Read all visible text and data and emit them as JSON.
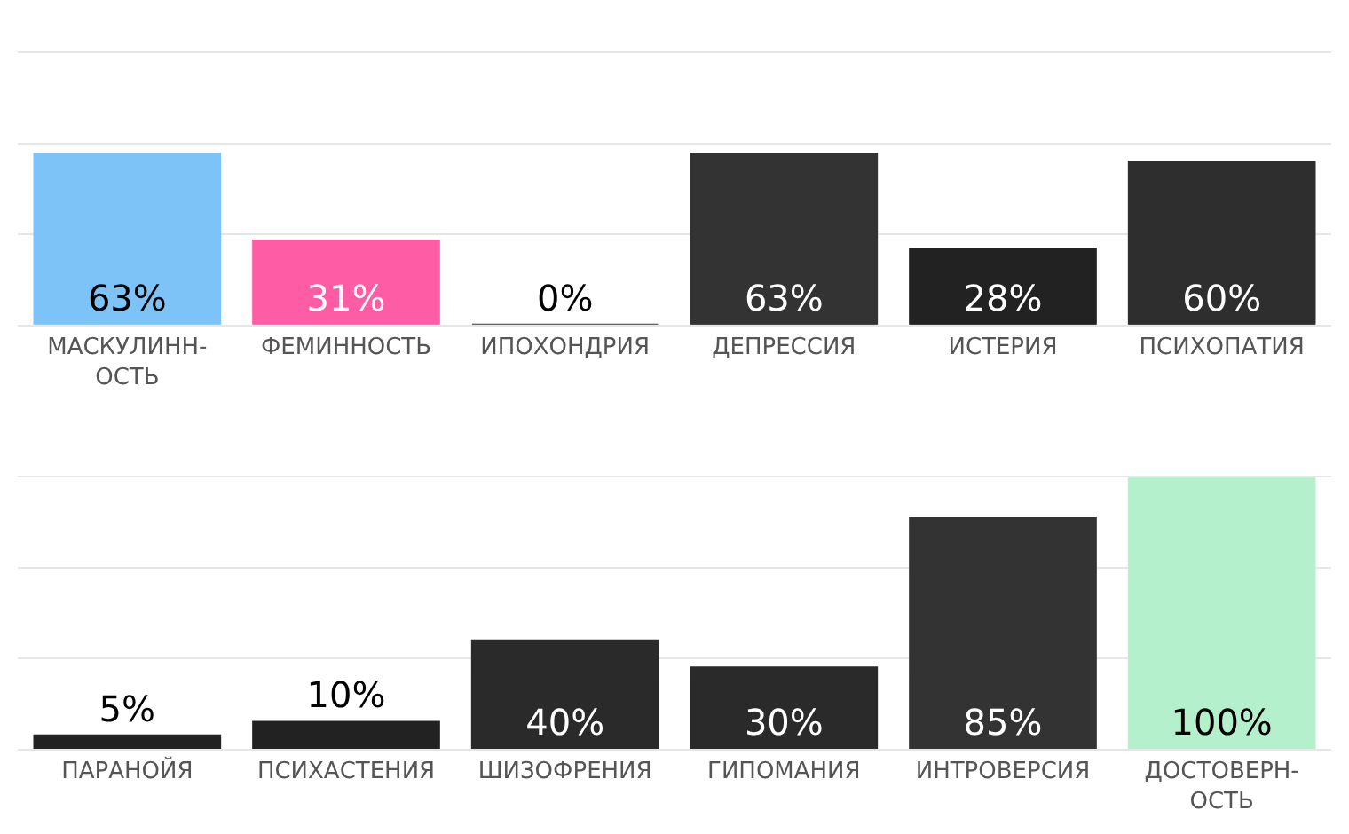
{
  "chart_data": [
    {
      "type": "bar",
      "categories": [
        "МАСКУЛИНН-\nОСТЬ",
        "ФЕМИННОСТЬ",
        "ИПОХОНДРИЯ",
        "ДЕПРЕССИЯ",
        "ИСТЕРИЯ",
        "ПСИХОПАТИЯ"
      ],
      "values": [
        63,
        31,
        0,
        63,
        28,
        60
      ],
      "colors": [
        "#7ec3f7",
        "#ff5ca6",
        "#333333",
        "#333333",
        "#222222",
        "#2e2e2e"
      ],
      "value_labels": [
        "63%",
        "31%",
        "0%",
        "63%",
        "28%",
        "60%"
      ],
      "ylim": [
        0,
        100
      ],
      "yticks": [
        {
          "value": 0,
          "label": null
        },
        {
          "value": 33.3,
          "label": null
        },
        {
          "value": 66.7,
          "label": null
        },
        {
          "value": 100,
          "label": null
        }
      ],
      "grid": "y",
      "tick_labels": "x"
    },
    {
      "type": "bar",
      "categories": [
        "ПАРАНОЙЯ",
        "ПСИХАСТЕНИЯ",
        "ШИЗОФРЕНИЯ",
        "ГИПОМАНИЯ",
        "ИНТРОВЕРСИЯ",
        "ДОСТОВЕРН-\nОСТЬ"
      ],
      "values": [
        5,
        10,
        40,
        30,
        85,
        100
      ],
      "colors": [
        "#222222",
        "#222222",
        "#2a2a2a",
        "#2a2a2a",
        "#333333",
        "#b5f0cc"
      ],
      "value_labels": [
        "5%",
        "10%",
        "40%",
        "30%",
        "85%",
        "100%"
      ],
      "ylim": [
        0,
        100
      ],
      "yticks": [
        {
          "value": 0,
          "label": null
        },
        {
          "value": 33.3,
          "label": null
        },
        {
          "value": 66.7,
          "label": null
        },
        {
          "value": 100,
          "label": null
        }
      ],
      "grid": "y",
      "tick_labels": "x"
    }
  ]
}
